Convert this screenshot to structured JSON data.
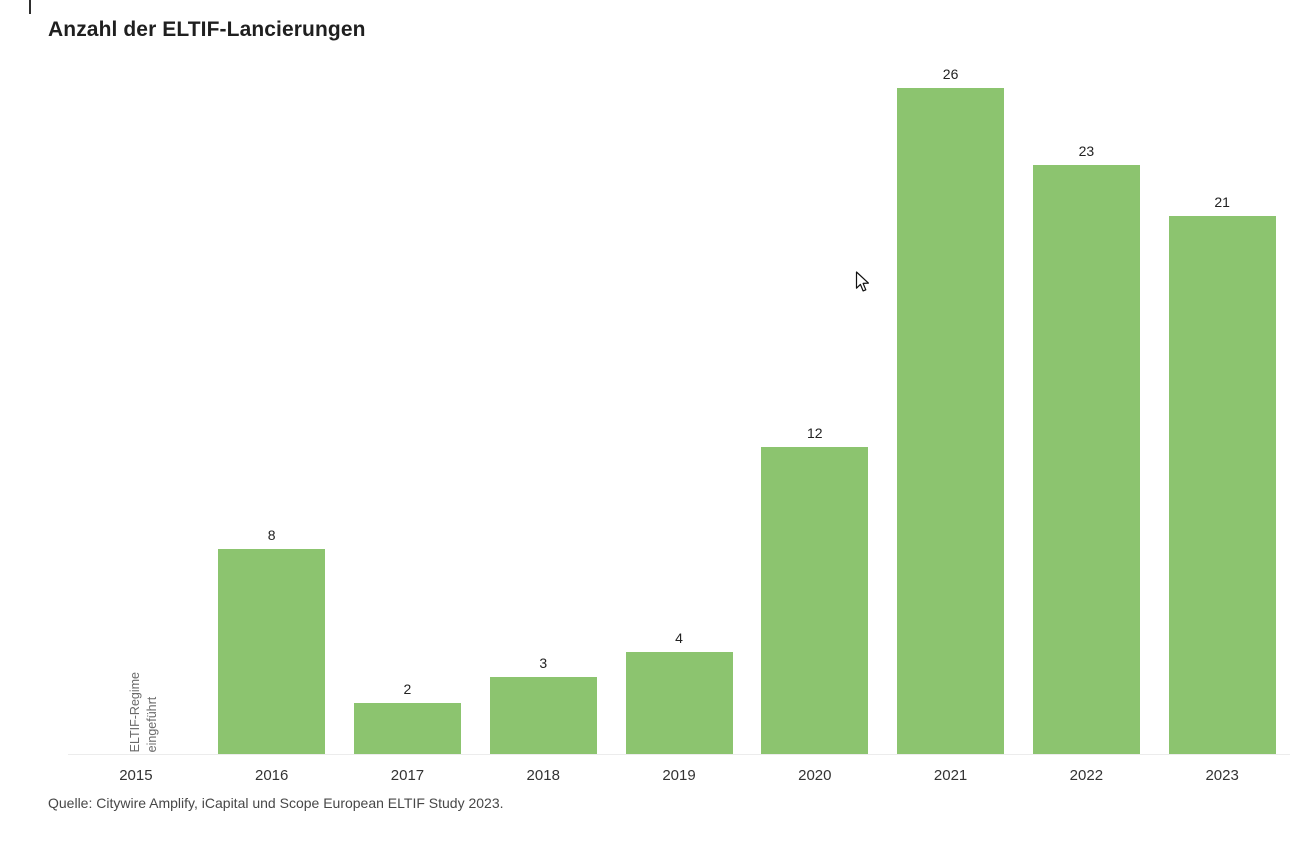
{
  "page": {
    "title": "Anzahl der ELTIF-Lancierungen",
    "source": "Quelle: Citywire Amplify, iCapital und Scope European ELTIF Study 2023."
  },
  "chart_data": {
    "type": "bar",
    "title": "Anzahl der ELTIF-Lancierungen",
    "categories": [
      "2015",
      "2016",
      "2017",
      "2018",
      "2019",
      "2020",
      "2021",
      "2022",
      "2023"
    ],
    "values": [
      0,
      8,
      2,
      3,
      4,
      12,
      26,
      23,
      21
    ],
    "value_labels_shown": true,
    "xlabel": "",
    "ylabel": "",
    "ylim": [
      0,
      26
    ],
    "grid": false,
    "legend": false,
    "bar_color": "#8cc46f",
    "annotations": [
      {
        "category": "2015",
        "lines": [
          "ELTIF-Regime",
          "eingeführt"
        ],
        "rotation": -90
      }
    ]
  }
}
